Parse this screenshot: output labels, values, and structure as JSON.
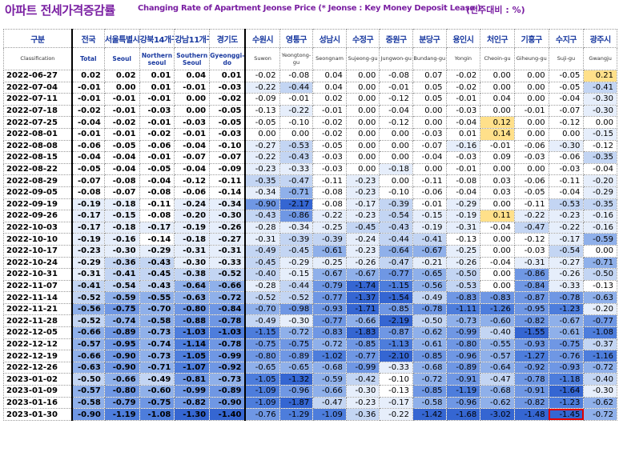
{
  "title": {
    "ko": "아파트 전세가격증감률",
    "en": "Changing Rate of Apartment Jeonse Price (* Jeonse : Key Money Deposit Lease )",
    "unit": "(전주대비 : %)"
  },
  "columns": [
    {
      "ko": "구분",
      "en": "Classification"
    },
    {
      "ko": "전국",
      "en": "Total"
    },
    {
      "ko": "서울특별시",
      "en": "Seoul"
    },
    {
      "ko": "강북14개구",
      "en": "Northern seoul"
    },
    {
      "ko": "강남11개구",
      "en": "Southern Seoul"
    },
    {
      "ko": "경기도",
      "en": "Gyeonggi-do"
    },
    {
      "ko": "수원시",
      "en": "Suwon"
    },
    {
      "ko": "영통구",
      "en": "Yeongtong-gu"
    },
    {
      "ko": "성남시",
      "en": "Seongnam"
    },
    {
      "ko": "수정구",
      "en": "Sujeong-gu"
    },
    {
      "ko": "중원구",
      "en": "Jungwon-gu"
    },
    {
      "ko": "분당구",
      "en": "Bundang-gu"
    },
    {
      "ko": "용인시",
      "en": "Yongin"
    },
    {
      "ko": "처인구",
      "en": "Cheoin-gu"
    },
    {
      "ko": "기흥구",
      "en": "Giheung-gu"
    },
    {
      "ko": "수지구",
      "en": "Suji-gu"
    },
    {
      "ko": "광주시",
      "en": "Gwangju"
    }
  ],
  "rows": [
    {
      "date": "2022-06-27",
      "values": [
        "0.02",
        "0.02",
        "0.01",
        "0.04",
        "0.01",
        "-0.02",
        "-0.08",
        "0.04",
        "0.00",
        "-0.08",
        "0.07",
        "-0.02",
        "0.00",
        "0.00",
        "-0.05",
        "0.21"
      ]
    },
    {
      "date": "2022-07-04",
      "values": [
        "-0.01",
        "0.00",
        "0.01",
        "-0.01",
        "-0.03",
        "-0.22",
        "-0.44",
        "0.04",
        "0.00",
        "-0.01",
        "0.05",
        "-0.02",
        "0.00",
        "0.00",
        "-0.05",
        "-0.41"
      ]
    },
    {
      "date": "2022-07-11",
      "values": [
        "-0.01",
        "-0.01",
        "-0.01",
        "0.00",
        "-0.02",
        "-0.09",
        "-0.01",
        "0.02",
        "0.00",
        "-0.12",
        "0.05",
        "-0.01",
        "0.04",
        "0.00",
        "-0.04",
        "-0.30"
      ]
    },
    {
      "date": "2022-07-18",
      "values": [
        "-0.02",
        "-0.01",
        "-0.03",
        "0.00",
        "-0.05",
        "-0.13",
        "-0.22",
        "-0.01",
        "0.00",
        "-0.04",
        "0.00",
        "-0.03",
        "0.00",
        "-0.01",
        "-0.07",
        "-0.30"
      ]
    },
    {
      "date": "2022-07-25",
      "values": [
        "-0.04",
        "-0.02",
        "-0.01",
        "-0.03",
        "-0.05",
        "-0.05",
        "-0.10",
        "-0.02",
        "0.00",
        "-0.12",
        "0.00",
        "-0.04",
        "0.12",
        "0.00",
        "-0.12",
        "0.00"
      ]
    },
    {
      "date": "2022-08-01",
      "values": [
        "-0.01",
        "-0.01",
        "-0.02",
        "-0.01",
        "-0.03",
        "0.00",
        "0.00",
        "-0.02",
        "0.00",
        "0.00",
        "-0.03",
        "0.01",
        "0.14",
        "0.00",
        "0.00",
        "-0.15"
      ]
    },
    {
      "date": "2022-08-08",
      "values": [
        "-0.06",
        "-0.05",
        "-0.06",
        "-0.04",
        "-0.10",
        "-0.27",
        "-0.53",
        "-0.05",
        "0.00",
        "0.00",
        "-0.07",
        "-0.16",
        "-0.01",
        "-0.06",
        "-0.30",
        "-0.12"
      ]
    },
    {
      "date": "2022-08-15",
      "values": [
        "-0.04",
        "-0.04",
        "-0.01",
        "-0.07",
        "-0.07",
        "-0.22",
        "-0.43",
        "-0.03",
        "0.00",
        "0.00",
        "-0.04",
        "-0.03",
        "0.09",
        "-0.03",
        "-0.06",
        "-0.35"
      ]
    },
    {
      "date": "2022-08-22",
      "values": [
        "-0.05",
        "-0.04",
        "-0.05",
        "-0.04",
        "-0.09",
        "-0.23",
        "-0.33",
        "-0.03",
        "0.00",
        "-0.18",
        "0.00",
        "-0.01",
        "0.00",
        "0.00",
        "-0.03",
        "-0.04"
      ]
    },
    {
      "date": "2022-08-29",
      "values": [
        "-0.07",
        "-0.08",
        "-0.04",
        "-0.12",
        "-0.11",
        "-0.35",
        "-0.47",
        "-0.11",
        "-0.23",
        "0.00",
        "-0.11",
        "-0.08",
        "0.03",
        "-0.06",
        "-0.11",
        "-0.20"
      ]
    },
    {
      "date": "2022-09-05",
      "values": [
        "-0.08",
        "-0.07",
        "-0.08",
        "-0.06",
        "-0.14",
        "-0.34",
        "-0.71",
        "-0.08",
        "-0.23",
        "-0.10",
        "-0.06",
        "-0.04",
        "0.03",
        "-0.05",
        "-0.04",
        "-0.29"
      ]
    },
    {
      "date": "2022-09-19",
      "values": [
        "-0.19",
        "-0.18",
        "-0.11",
        "-0.24",
        "-0.34",
        "-0.90",
        "-2.17",
        "-0.08",
        "-0.17",
        "-0.39",
        "-0.01",
        "-0.29",
        "0.00",
        "-0.11",
        "-0.53",
        "-0.35"
      ]
    },
    {
      "date": "2022-09-26",
      "values": [
        "-0.17",
        "-0.15",
        "-0.08",
        "-0.20",
        "-0.30",
        "-0.43",
        "-0.86",
        "-0.22",
        "-0.23",
        "-0.54",
        "-0.15",
        "-0.19",
        "0.11",
        "-0.22",
        "-0.23",
        "-0.16"
      ]
    },
    {
      "date": "2022-10-03",
      "values": [
        "-0.17",
        "-0.18",
        "-0.17",
        "-0.19",
        "-0.26",
        "-0.28",
        "-0.34",
        "-0.25",
        "-0.45",
        "-0.43",
        "-0.19",
        "-0.31",
        "-0.04",
        "-0.47",
        "-0.22",
        "-0.16"
      ]
    },
    {
      "date": "2022-10-10",
      "values": [
        "-0.19",
        "-0.16",
        "-0.14",
        "-0.18",
        "-0.27",
        "-0.31",
        "-0.39",
        "-0.39",
        "-0.24",
        "-0.44",
        "-0.41",
        "-0.13",
        "0.00",
        "-0.12",
        "-0.17",
        "-0.59"
      ]
    },
    {
      "date": "2022-10-17",
      "values": [
        "-0.23",
        "-0.30",
        "-0.29",
        "-0.31",
        "-0.31",
        "-0.49",
        "-0.45",
        "-0.61",
        "-0.23",
        "-0.64",
        "-0.67",
        "-0.25",
        "0.00",
        "-0.03",
        "-0.54",
        "0.00"
      ]
    },
    {
      "date": "2022-10-24",
      "values": [
        "-0.29",
        "-0.36",
        "-0.43",
        "-0.30",
        "-0.33",
        "-0.45",
        "-0.29",
        "-0.25",
        "-0.26",
        "-0.47",
        "-0.21",
        "-0.26",
        "-0.04",
        "-0.31",
        "-0.27",
        "-0.71"
      ]
    },
    {
      "date": "2022-10-31",
      "values": [
        "-0.31",
        "-0.41",
        "-0.45",
        "-0.38",
        "-0.52",
        "-0.40",
        "-0.15",
        "-0.67",
        "-0.67",
        "-0.77",
        "-0.65",
        "-0.50",
        "0.00",
        "-0.86",
        "-0.26",
        "-0.50"
      ]
    },
    {
      "date": "2022-11-07",
      "values": [
        "-0.41",
        "-0.54",
        "-0.43",
        "-0.64",
        "-0.66",
        "-0.28",
        "-0.44",
        "-0.79",
        "-1.74",
        "-1.15",
        "-0.56",
        "-0.53",
        "0.00",
        "-0.84",
        "-0.33",
        "-0.13"
      ]
    },
    {
      "date": "2022-11-14",
      "values": [
        "-0.52",
        "-0.59",
        "-0.55",
        "-0.63",
        "-0.72",
        "-0.52",
        "-0.52",
        "-0.77",
        "-1.37",
        "-1.54",
        "-0.49",
        "-0.83",
        "-0.83",
        "-0.87",
        "-0.78",
        "-0.63"
      ]
    },
    {
      "date": "2022-11-21",
      "values": [
        "-0.56",
        "-0.75",
        "-0.70",
        "-0.80",
        "-0.84",
        "-0.70",
        "-0.98",
        "-0.93",
        "-1.71",
        "-0.85",
        "-0.78",
        "-1.11",
        "-1.26",
        "-0.95",
        "-1.23",
        "-0.20"
      ]
    },
    {
      "date": "2022-11-28",
      "values": [
        "-0.52",
        "-0.74",
        "-0.58",
        "-0.88",
        "-0.78",
        "-0.49",
        "-0.30",
        "-0.77",
        "-0.66",
        "-2.19",
        "-0.50",
        "-0.73",
        "-0.60",
        "-0.82",
        "-0.67",
        "-0.77"
      ]
    },
    {
      "date": "2022-12-05",
      "values": [
        "-0.66",
        "-0.89",
        "-0.73",
        "-1.03",
        "-1.03",
        "-1.15",
        "-0.72",
        "-0.83",
        "-1.83",
        "-0.87",
        "-0.62",
        "-0.99",
        "-0.40",
        "-1.55",
        "-0.61",
        "-1.08"
      ]
    },
    {
      "date": "2022-12-12",
      "values": [
        "-0.57",
        "-0.95",
        "-0.74",
        "-1.14",
        "-0.78",
        "-0.75",
        "-0.75",
        "-0.72",
        "-0.85",
        "-1.13",
        "-0.61",
        "-0.80",
        "-0.55",
        "-0.93",
        "-0.75",
        "-0.37"
      ]
    },
    {
      "date": "2022-12-19",
      "values": [
        "-0.66",
        "-0.90",
        "-0.73",
        "-1.05",
        "-0.99",
        "-0.80",
        "-0.89",
        "-1.02",
        "-0.77",
        "-2.10",
        "-0.85",
        "-0.96",
        "-0.57",
        "-1.27",
        "-0.76",
        "-1.16"
      ]
    },
    {
      "date": "2022-12-26",
      "values": [
        "-0.63",
        "-0.90",
        "-0.71",
        "-1.07",
        "-0.92",
        "-0.65",
        "-0.65",
        "-0.68",
        "-0.99",
        "-0.33",
        "-0.68",
        "-0.89",
        "-0.64",
        "-0.92",
        "-0.93",
        "-0.72"
      ]
    },
    {
      "date": "2023-01-02",
      "values": [
        "-0.50",
        "-0.66",
        "-0.49",
        "-0.81",
        "-0.73",
        "-1.05",
        "-1.32",
        "-0.59",
        "-0.42",
        "-0.10",
        "-0.72",
        "-0.91",
        "-0.47",
        "-0.78",
        "-1.18",
        "-0.40"
      ]
    },
    {
      "date": "2023-01-09",
      "values": [
        "-0.57",
        "-0.80",
        "-0.60",
        "-0.99",
        "-0.89",
        "-1.09",
        "-0.96",
        "-0.66",
        "-0.30",
        "-0.13",
        "-0.85",
        "-1.19",
        "-0.68",
        "-0.91",
        "-1.64",
        "-0.30"
      ]
    },
    {
      "date": "2023-01-16",
      "values": [
        "-0.58",
        "-0.79",
        "-0.75",
        "-0.82",
        "-0.90",
        "-1.09",
        "-1.87",
        "-0.47",
        "-0.23",
        "-0.17",
        "-0.58",
        "-0.96",
        "-0.62",
        "-0.82",
        "-1.23",
        "-0.62"
      ]
    },
    {
      "date": "2023-01-30",
      "values": [
        "-0.90",
        "-1.19",
        "-1.08",
        "-1.30",
        "-1.40",
        "-0.76",
        "-1.29",
        "-1.09",
        "-0.36",
        "-0.22",
        "-1.42",
        "-1.68",
        "-3.02",
        "-1.48",
        "-1.45",
        "-0.72"
      ]
    }
  ],
  "colors": {
    "title": "#7a1fa2",
    "header": "#1a3aa0",
    "positive_highlight": "#ffe08a",
    "cell_light": "#dbe6f7",
    "cell_mid": "#9fbdea",
    "cell_dark": "#4a78d8",
    "cell_darkest": "#2650c8",
    "marker_box": "#e00000"
  },
  "highlighted_cell": {
    "date": "2023-01-30",
    "column": "수지구"
  }
}
